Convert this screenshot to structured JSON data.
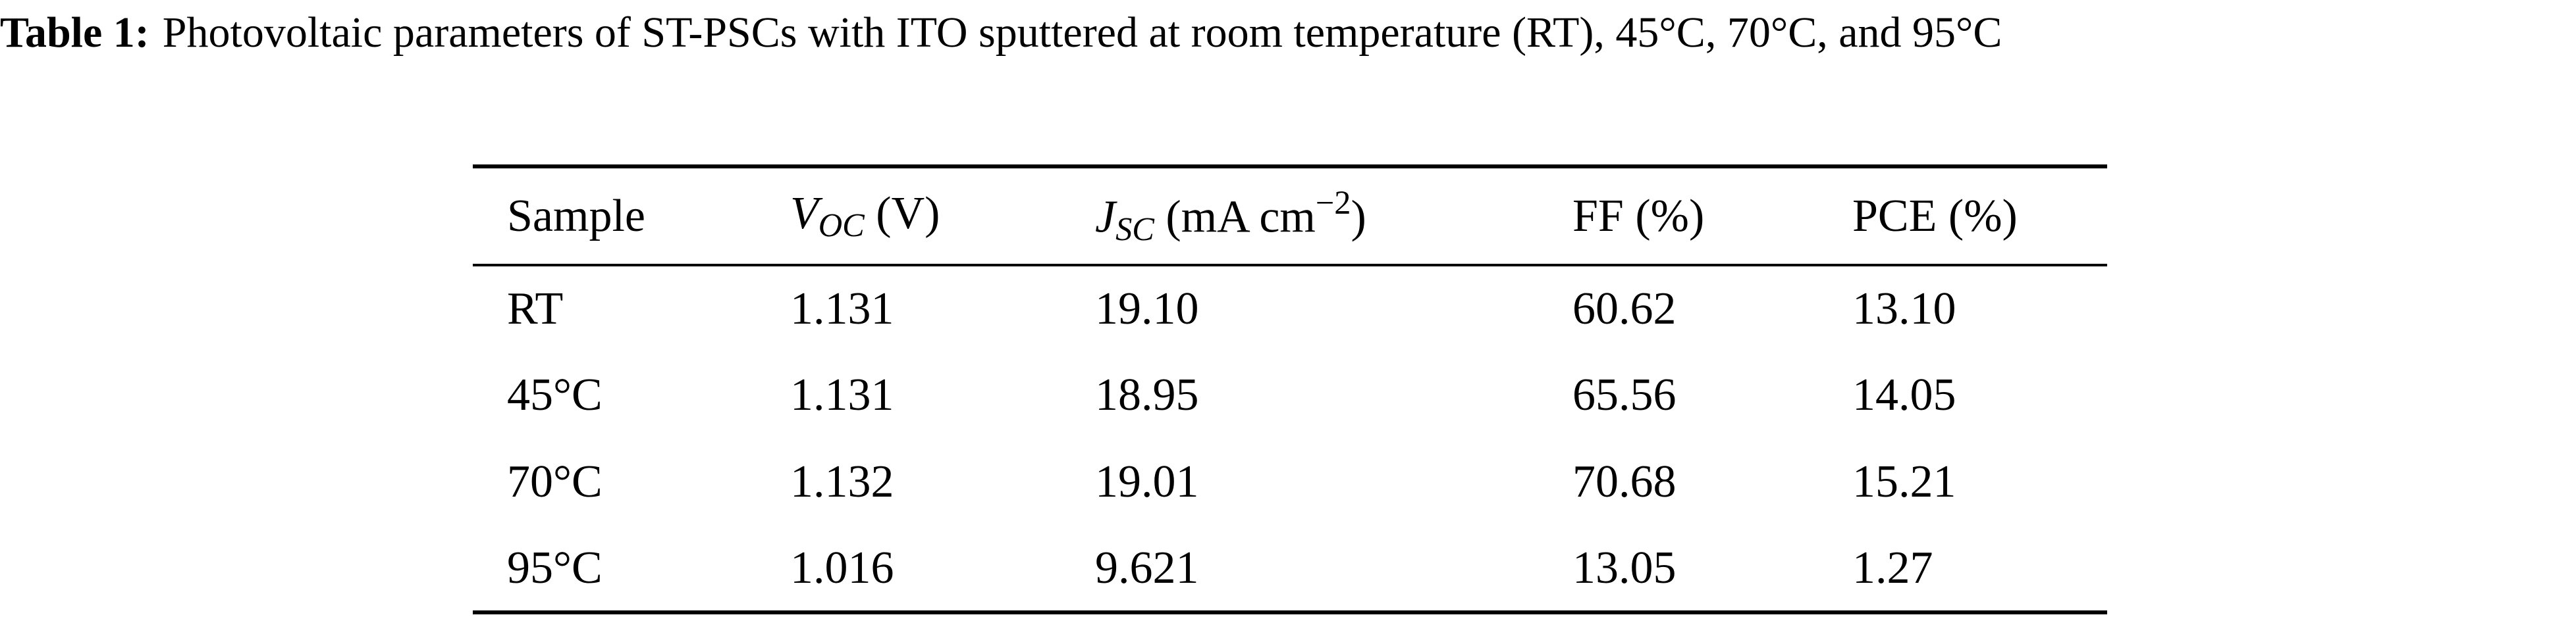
{
  "caption": {
    "label": "Table 1:",
    "text": "Photovoltaic parameters of ST-PSCs with ITO sputtered at room temperature (RT), 45°C, 70°C, and 95°C"
  },
  "table": {
    "header": [
      [
        {
          "text": "Sample"
        }
      ],
      [
        {
          "text": "V",
          "style": "italic"
        },
        {
          "text": "OC",
          "style": "sub-italic"
        },
        {
          "text": " (V)"
        }
      ],
      [
        {
          "text": "J",
          "style": "italic"
        },
        {
          "text": "SC",
          "style": "sub-italic"
        },
        {
          "text": " (mA cm"
        },
        {
          "text": "−2",
          "style": "sup"
        },
        {
          "text": ")"
        }
      ],
      [
        {
          "text": "FF (%)"
        }
      ],
      [
        {
          "text": "PCE (%)"
        }
      ]
    ],
    "rows": [
      [
        "RT",
        "1.131",
        "19.10",
        "60.62",
        "13.10"
      ],
      [
        "45°C",
        "1.131",
        "18.95",
        "65.56",
        "14.05"
      ],
      [
        "70°C",
        "1.132",
        "19.01",
        "70.68",
        "15.21"
      ],
      [
        "95°C",
        "1.016",
        "9.621",
        "13.05",
        "1.27"
      ]
    ]
  }
}
